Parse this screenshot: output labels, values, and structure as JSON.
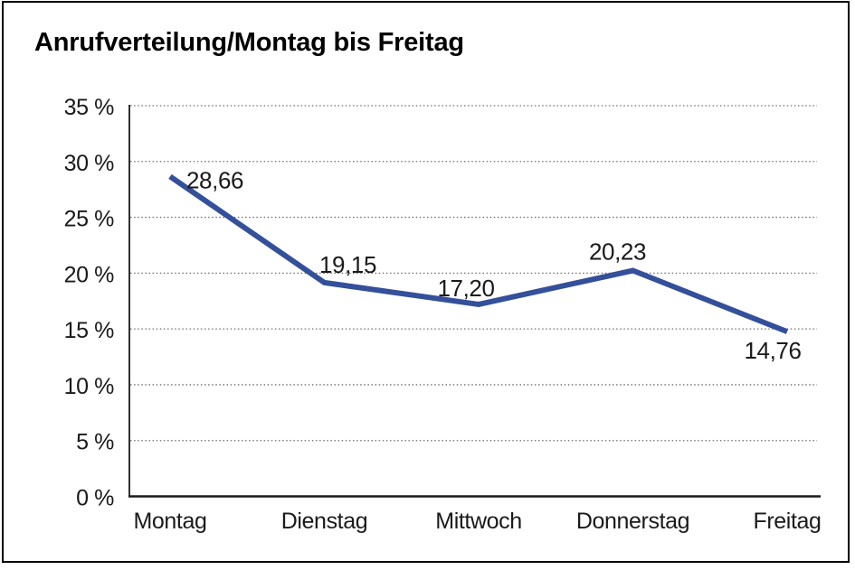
{
  "chart_data": {
    "type": "line",
    "title": "Anrufverteilung/Montag bis Freitag",
    "categories": [
      "Montag",
      "Dienstag",
      "Mittwoch",
      "Donnerstag",
      "Freitag"
    ],
    "values": [
      28.66,
      19.15,
      17.2,
      20.23,
      14.76
    ],
    "data_labels": [
      "28,66",
      "19,15",
      "17,20",
      "20,23",
      "14,76"
    ],
    "series_name": "Anrufverteilung",
    "yticks": [
      0,
      5,
      10,
      15,
      20,
      25,
      30,
      35
    ],
    "ytick_labels": [
      "0 %",
      "5 %",
      "10 %",
      "15 %",
      "20 %",
      "25 %",
      "30 %",
      "35 %"
    ],
    "ylim": [
      0,
      35
    ],
    "xlabel": "",
    "ylabel": "",
    "grid": "horizontal-dotted",
    "legend": "none",
    "colors": {
      "line": "#34509a",
      "axis": "#1a1a1a",
      "gridline": "#6e6e6e",
      "text": "#1a1a1a",
      "background": "#ffffff",
      "frame_border": "#000000"
    }
  }
}
